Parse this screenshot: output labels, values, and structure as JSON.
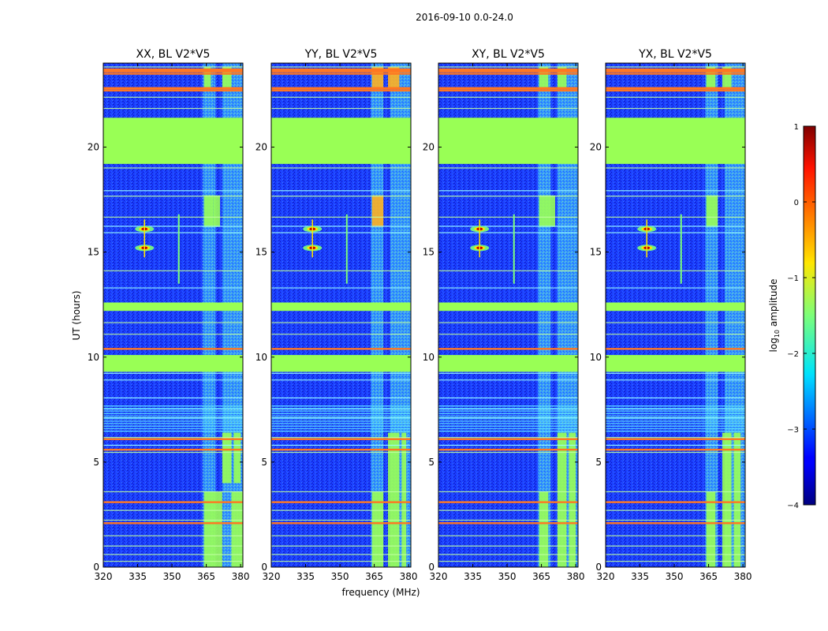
{
  "figure": {
    "suptitle": "2016-09-10 0.0-24.0"
  },
  "chart_data": {
    "type": "heatmap",
    "x_range_mhz": [
      320,
      381
    ],
    "y_range_hours": [
      0,
      24
    ],
    "xticks": [
      320,
      335,
      350,
      365,
      380
    ],
    "xtick_labels": [
      "320",
      "335",
      "350",
      "365",
      "380"
    ],
    "yticks": [
      0,
      5,
      10,
      15,
      20
    ],
    "ytick_labels": [
      "0",
      "5",
      "10",
      "15",
      "20"
    ],
    "xlabel": "frequency (MHz)",
    "ylabel": "UT (hours)",
    "panels": [
      {
        "title": "XX, BL V2*V5",
        "pol": "XX"
      },
      {
        "title": "YY, BL V2*V5",
        "pol": "YY"
      },
      {
        "title": "XY, BL V2*V5",
        "pol": "XY"
      },
      {
        "title": "YX, BL V2*V5",
        "pol": "YX"
      }
    ],
    "colorbar": {
      "label_prefix": "log",
      "label_sub": "10",
      "label_suffix": " amplitude",
      "vmin": -4,
      "vmax": 1,
      "ticks": [
        1,
        0,
        -1,
        -2,
        -3,
        -4
      ],
      "tick_labels": [
        "1",
        "0",
        "−1",
        "−2",
        "−3",
        "−4"
      ],
      "colormap": "jet"
    },
    "features": {
      "background_log_amp": -3.0,
      "flagged_time_blocks_hours": [
        [
          19.2,
          21.4
        ],
        [
          9.3,
          10.1
        ],
        [
          12.2,
          12.6
        ]
      ],
      "interference_lines_hours": [
        23.5,
        22.7,
        10.4,
        6.1,
        5.6,
        3.1,
        2.1
      ],
      "bright_source_peaks": [
        {
          "freq_mhz": 338,
          "time_h": 16.1,
          "log_amp": 0.8
        },
        {
          "freq_mhz": 338,
          "time_h": 15.2,
          "log_amp": 0.8
        }
      ],
      "rfi_bands_mhz": [
        [
          363.5,
          369
        ],
        [
          372,
          377
        ],
        [
          377,
          381
        ]
      ]
    },
    "colors": {
      "flag_green": "#99ff55",
      "line_orange": "#ff7722",
      "background_blue": "#1a3cff"
    }
  }
}
